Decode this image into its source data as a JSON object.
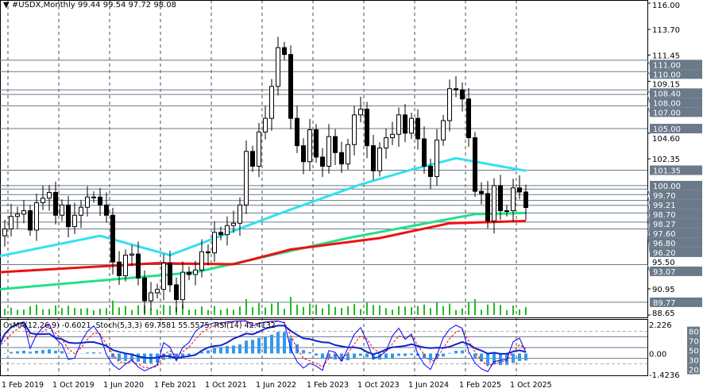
{
  "header": {
    "symbol": "#USDX,Monthly",
    "ohlc": "99.44 99.54 97.72 98.08",
    "menu_icon": "triangle-down-icon"
  },
  "indicator_header": {
    "osma": "OsMA(12,26,9) -0.6021",
    "stoch": "Stoch(5,3,3) 69.7581 55.5575",
    "rsi": "RSI(14) 42.4132"
  },
  "colors": {
    "bull": "#ffffff",
    "bear": "#000000",
    "ma_fast": "#33e0f0",
    "ma_mid": "#22e08a",
    "ma_slow": "#ee1111",
    "volume": "#22bb22",
    "level": "#6a7a8a",
    "osma": "#3399ee",
    "rsi": "#1122cc",
    "stoch_main": "#0000ff",
    "stoch_signal": "#ff0000"
  },
  "chart_data": {
    "type": "candlestick",
    "timeframe": "Monthly",
    "x_tick_labels": [
      "1 Feb 2019",
      "1 Oct 2019",
      "1 Jun 2020",
      "1 Feb 2021",
      "1 Oct 2021",
      "1 Jun 2022",
      "1 Feb 2023",
      "1 Oct 2023",
      "1 Jun 2024",
      "1 Feb 2025",
      "1 Oct 2025"
    ],
    "y_range": [
      88.65,
      116.0
    ],
    "y_tick_labels": [
      "116.00",
      "113.70",
      "111.45",
      "109.15",
      "104.60",
      "102.35",
      "95.50",
      "90.95",
      "88.65"
    ],
    "price_levels": [
      "111.00",
      "110.00",
      "108.40",
      "108.00",
      "107.00",
      "105.00",
      "101.35",
      "100.00",
      "99.70",
      "99.21",
      "98.70",
      "98.27",
      "97.60",
      "96.80",
      "96.20",
      "93.07",
      "89.77"
    ],
    "start_month": "2019-01",
    "closes": [
      95.6,
      96.2,
      97.3,
      97.5,
      97.8,
      96.1,
      98.5,
      98.9,
      99.4,
      97.4,
      98.3,
      96.4,
      97.4,
      98.1,
      99.0,
      99.0,
      98.3,
      97.4,
      93.3,
      92.1,
      93.9,
      94.0,
      91.9,
      89.9,
      90.6,
      90.9,
      93.2,
      91.3,
      90.0,
      92.4,
      92.2,
      92.6,
      94.2,
      94.1,
      95.9,
      95.7,
      96.5,
      96.7,
      98.3,
      103.0,
      101.7,
      104.7,
      105.9,
      108.7,
      112.1,
      111.5,
      105.9,
      103.5,
      102.1,
      104.9,
      102.5,
      101.7,
      104.3,
      102.9,
      101.9,
      103.6,
      106.2,
      106.7,
      103.5,
      101.3,
      103.3,
      104.2,
      104.5,
      106.2,
      104.6,
      105.9,
      104.1,
      101.7,
      100.8,
      104.0,
      105.7,
      108.5,
      108.4,
      107.6,
      104.2,
      99.5,
      99.3,
      96.9,
      100.0,
      97.8,
      97.8,
      99.8,
      99.44,
      98.08
    ],
    "moving_averages": [
      {
        "key": "ma_fast",
        "points": [
          [
            0,
            93.8
          ],
          [
            16,
            95.6
          ],
          [
            27,
            93.9
          ],
          [
            44,
            97.5
          ],
          [
            57,
            100.1
          ],
          [
            65,
            101.4
          ],
          [
            72,
            102.4
          ],
          [
            83,
            101.3
          ]
        ]
      },
      {
        "key": "ma_mid",
        "points": [
          [
            0,
            90.9
          ],
          [
            31,
            92.4
          ],
          [
            55,
            95.4
          ],
          [
            75,
            97.5
          ],
          [
            83,
            97.6
          ]
        ]
      },
      {
        "key": "ma_slow",
        "points": [
          [
            0,
            92.4
          ],
          [
            25,
            93.2
          ],
          [
            37,
            93.1
          ],
          [
            46,
            94.4
          ],
          [
            60,
            95.4
          ],
          [
            71,
            96.7
          ],
          [
            83,
            96.9
          ]
        ]
      }
    ],
    "indicator_scale_labels": [
      "2.226",
      "80",
      "70",
      "50",
      "0.00",
      "30",
      "20",
      "-1.4236"
    ]
  }
}
